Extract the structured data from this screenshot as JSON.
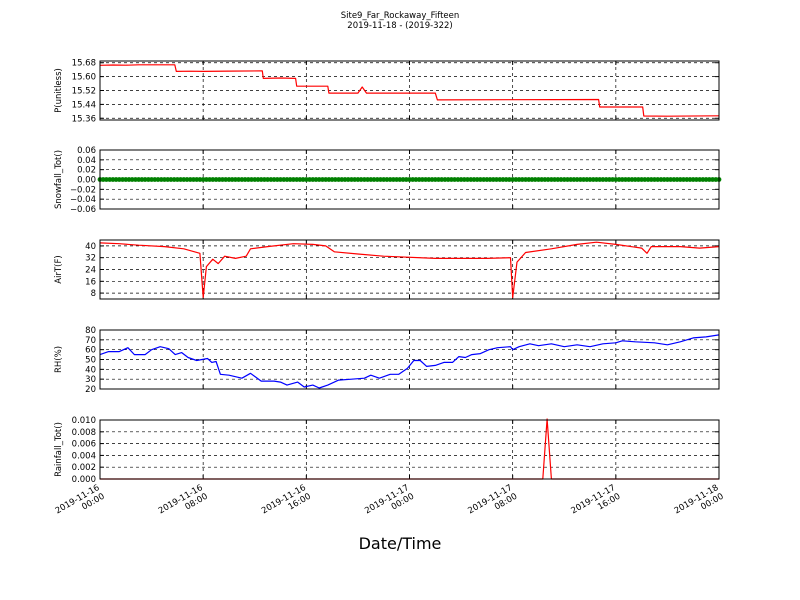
{
  "title": "Site9_Far_Rockaway_Fifteen",
  "subtitle": "2019-11-18 - (2019-322)",
  "xlabel": "Date/Time",
  "chart_data": {
    "type": "line",
    "x_range": [
      "2019-11-16 00:00",
      "2019-11-18 00:00"
    ],
    "x_ticks": [
      {
        "t": "2019-11-16 00:00",
        "label": [
          "2019-11-16",
          "00:00"
        ]
      },
      {
        "t": "2019-11-16 08:00",
        "label": [
          "2019-11-16",
          "08:00"
        ]
      },
      {
        "t": "2019-11-16 16:00",
        "label": [
          "2019-11-16",
          "16:00"
        ]
      },
      {
        "t": "2019-11-17 00:00",
        "label": [
          "2019-11-17",
          "00:00"
        ]
      },
      {
        "t": "2019-11-17 08:00",
        "label": [
          "2019-11-17",
          "08:00"
        ]
      },
      {
        "t": "2019-11-17 16:00",
        "label": [
          "2019-11-17",
          "16:00"
        ]
      },
      {
        "t": "2019-11-18 00:00",
        "label": [
          "2019-11-18",
          "00:00"
        ]
      }
    ],
    "grid": true,
    "panels": [
      {
        "ylabel": "P(unitless)",
        "ylim": [
          15.35,
          15.69
        ],
        "yticks": [
          "15.36",
          "15.44",
          "15.52",
          "15.60",
          "15.68"
        ],
        "color": "#ff0000",
        "series": [
          {
            "x": "2019-11-16 00:00",
            "y": 15.665
          },
          {
            "x": "2019-11-16 01:00",
            "y": 15.667
          },
          {
            "x": "2019-11-16 02:00",
            "y": 15.666
          },
          {
            "x": "2019-11-16 03:00",
            "y": 15.668
          },
          {
            "x": "2019-11-16 05:48",
            "y": 15.668
          },
          {
            "x": "2019-11-16 05:55",
            "y": 15.63
          },
          {
            "x": "2019-11-16 07:00",
            "y": 15.631
          },
          {
            "x": "2019-11-16 08:00",
            "y": 15.63
          },
          {
            "x": "2019-11-16 10:00",
            "y": 15.632
          },
          {
            "x": "2019-11-16 12:35",
            "y": 15.633
          },
          {
            "x": "2019-11-16 12:40",
            "y": 15.59
          },
          {
            "x": "2019-11-16 14:00",
            "y": 15.592
          },
          {
            "x": "2019-11-16 15:10",
            "y": 15.59
          },
          {
            "x": "2019-11-16 15:15",
            "y": 15.545
          },
          {
            "x": "2019-11-16 17:40",
            "y": 15.545
          },
          {
            "x": "2019-11-16 17:45",
            "y": 15.505
          },
          {
            "x": "2019-11-16 20:00",
            "y": 15.505
          },
          {
            "x": "2019-11-16 20:20",
            "y": 15.54
          },
          {
            "x": "2019-11-16 20:40",
            "y": 15.505
          },
          {
            "x": "2019-11-17 02:00",
            "y": 15.505
          },
          {
            "x": "2019-11-17 02:10",
            "y": 15.466
          },
          {
            "x": "2019-11-17 08:00",
            "y": 15.467
          },
          {
            "x": "2019-11-17 14:40",
            "y": 15.468
          },
          {
            "x": "2019-11-17 14:45",
            "y": 15.425
          },
          {
            "x": "2019-11-17 18:05",
            "y": 15.425
          },
          {
            "x": "2019-11-17 18:10",
            "y": 15.373
          },
          {
            "x": "2019-11-17 20:00",
            "y": 15.372
          },
          {
            "x": "2019-11-18 00:00",
            "y": 15.374
          }
        ]
      },
      {
        "ylabel": "Snowfall_Tot()",
        "ylim": [
          -0.06,
          0.06
        ],
        "yticks": [
          "−0.06",
          "−0.04",
          "−0.02",
          "0.00",
          "0.02",
          "0.04",
          "0.06"
        ],
        "color": "#008000",
        "markers": true,
        "constant": 0
      },
      {
        "ylabel": "AirT(F)",
        "ylim": [
          4,
          44
        ],
        "yticks": [
          "8",
          "16",
          "24",
          "32",
          "40"
        ],
        "color": "#ff0000",
        "series": [
          {
            "x": "2019-11-16 00:00",
            "y": 42
          },
          {
            "x": "2019-11-16 01:30",
            "y": 41.5
          },
          {
            "x": "2019-11-16 03:00",
            "y": 40.5
          },
          {
            "x": "2019-11-16 05:00",
            "y": 39.5
          },
          {
            "x": "2019-11-16 06:30",
            "y": 38
          },
          {
            "x": "2019-11-16 07:45",
            "y": 35
          },
          {
            "x": "2019-11-16 08:00",
            "y": 5
          },
          {
            "x": "2019-11-16 08:15",
            "y": 26
          },
          {
            "x": "2019-11-16 08:45",
            "y": 31
          },
          {
            "x": "2019-11-16 09:10",
            "y": 28
          },
          {
            "x": "2019-11-16 09:40",
            "y": 33
          },
          {
            "x": "2019-11-16 10:30",
            "y": 31.5
          },
          {
            "x": "2019-11-16 11:20",
            "y": 33
          },
          {
            "x": "2019-11-16 11:40",
            "y": 38
          },
          {
            "x": "2019-11-16 13:00",
            "y": 39.5
          },
          {
            "x": "2019-11-16 15:00",
            "y": 41.5
          },
          {
            "x": "2019-11-16 16:30",
            "y": 41
          },
          {
            "x": "2019-11-16 17:30",
            "y": 40
          },
          {
            "x": "2019-11-16 18:10",
            "y": 36
          },
          {
            "x": "2019-11-16 20:00",
            "y": 34.5
          },
          {
            "x": "2019-11-16 22:00",
            "y": 33
          },
          {
            "x": "2019-11-17 02:00",
            "y": 31.5
          },
          {
            "x": "2019-11-17 06:00",
            "y": 31.5
          },
          {
            "x": "2019-11-17 07:50",
            "y": 32
          },
          {
            "x": "2019-11-17 08:00",
            "y": 5
          },
          {
            "x": "2019-11-17 08:20",
            "y": 29
          },
          {
            "x": "2019-11-17 09:00",
            "y": 35.5
          },
          {
            "x": "2019-11-17 11:00",
            "y": 38
          },
          {
            "x": "2019-11-17 13:00",
            "y": 41
          },
          {
            "x": "2019-11-17 14:30",
            "y": 42.5
          },
          {
            "x": "2019-11-17 16:00",
            "y": 41
          },
          {
            "x": "2019-11-17 18:00",
            "y": 38.5
          },
          {
            "x": "2019-11-17 18:25",
            "y": 35
          },
          {
            "x": "2019-11-17 18:45",
            "y": 39.5
          },
          {
            "x": "2019-11-17 21:00",
            "y": 39.5
          },
          {
            "x": "2019-11-17 22:30",
            "y": 38.5
          },
          {
            "x": "2019-11-18 00:00",
            "y": 39.5
          }
        ]
      },
      {
        "ylabel": "RH(%)",
        "ylim": [
          20,
          80
        ],
        "yticks": [
          "20",
          "30",
          "40",
          "50",
          "60",
          "70",
          "80"
        ],
        "color": "#0000ff",
        "series": [
          {
            "x": "2019-11-16 00:00",
            "y": 55
          },
          {
            "x": "2019-11-16 00:40",
            "y": 58
          },
          {
            "x": "2019-11-16 01:30",
            "y": 58
          },
          {
            "x": "2019-11-16 02:10",
            "y": 62
          },
          {
            "x": "2019-11-16 02:40",
            "y": 55
          },
          {
            "x": "2019-11-16 03:30",
            "y": 55
          },
          {
            "x": "2019-11-16 04:00",
            "y": 60
          },
          {
            "x": "2019-11-16 04:40",
            "y": 63
          },
          {
            "x": "2019-11-16 05:20",
            "y": 61
          },
          {
            "x": "2019-11-16 05:50",
            "y": 55
          },
          {
            "x": "2019-11-16 06:20",
            "y": 57
          },
          {
            "x": "2019-11-16 06:50",
            "y": 52
          },
          {
            "x": "2019-11-16 07:30",
            "y": 49
          },
          {
            "x": "2019-11-16 08:20",
            "y": 51
          },
          {
            "x": "2019-11-16 08:40",
            "y": 47
          },
          {
            "x": "2019-11-16 09:00",
            "y": 48
          },
          {
            "x": "2019-11-16 09:20",
            "y": 35
          },
          {
            "x": "2019-11-16 10:00",
            "y": 34
          },
          {
            "x": "2019-11-16 11:00",
            "y": 31
          },
          {
            "x": "2019-11-16 11:40",
            "y": 36
          },
          {
            "x": "2019-11-16 12:30",
            "y": 28
          },
          {
            "x": "2019-11-16 13:30",
            "y": 28
          },
          {
            "x": "2019-11-16 14:00",
            "y": 27
          },
          {
            "x": "2019-11-16 14:30",
            "y": 24
          },
          {
            "x": "2019-11-16 15:20",
            "y": 27
          },
          {
            "x": "2019-11-16 15:50",
            "y": 22
          },
          {
            "x": "2019-11-16 16:30",
            "y": 24
          },
          {
            "x": "2019-11-16 17:00",
            "y": 21
          },
          {
            "x": "2019-11-16 17:40",
            "y": 24
          },
          {
            "x": "2019-11-16 18:30",
            "y": 29
          },
          {
            "x": "2019-11-16 19:30",
            "y": 30
          },
          {
            "x": "2019-11-16 20:30",
            "y": 31
          },
          {
            "x": "2019-11-16 21:00",
            "y": 34
          },
          {
            "x": "2019-11-16 21:40",
            "y": 31
          },
          {
            "x": "2019-11-16 22:30",
            "y": 35
          },
          {
            "x": "2019-11-16 23:10",
            "y": 35
          },
          {
            "x": "2019-11-16 23:50",
            "y": 41
          },
          {
            "x": "2019-11-17 00:20",
            "y": 49
          },
          {
            "x": "2019-11-17 00:50",
            "y": 49
          },
          {
            "x": "2019-11-17 01:20",
            "y": 43
          },
          {
            "x": "2019-11-17 02:00",
            "y": 44
          },
          {
            "x": "2019-11-17 02:40",
            "y": 47
          },
          {
            "x": "2019-11-17 03:20",
            "y": 47
          },
          {
            "x": "2019-11-17 03:50",
            "y": 53
          },
          {
            "x": "2019-11-17 04:20",
            "y": 52
          },
          {
            "x": "2019-11-17 04:50",
            "y": 55
          },
          {
            "x": "2019-11-17 05:30",
            "y": 56
          },
          {
            "x": "2019-11-17 06:10",
            "y": 60
          },
          {
            "x": "2019-11-17 06:50",
            "y": 62
          },
          {
            "x": "2019-11-17 07:50",
            "y": 63
          },
          {
            "x": "2019-11-17 08:00",
            "y": 60
          },
          {
            "x": "2019-11-17 08:30",
            "y": 63
          },
          {
            "x": "2019-11-17 09:20",
            "y": 66
          },
          {
            "x": "2019-11-17 10:00",
            "y": 64
          },
          {
            "x": "2019-11-17 11:00",
            "y": 66
          },
          {
            "x": "2019-11-17 12:00",
            "y": 63
          },
          {
            "x": "2019-11-17 13:00",
            "y": 65
          },
          {
            "x": "2019-11-17 14:00",
            "y": 63
          },
          {
            "x": "2019-11-17 15:00",
            "y": 66
          },
          {
            "x": "2019-11-17 16:00",
            "y": 67
          },
          {
            "x": "2019-11-17 16:30",
            "y": 69
          },
          {
            "x": "2019-11-17 17:30",
            "y": 68
          },
          {
            "x": "2019-11-17 19:00",
            "y": 67
          },
          {
            "x": "2019-11-17 20:00",
            "y": 65
          },
          {
            "x": "2019-11-17 21:00",
            "y": 68
          },
          {
            "x": "2019-11-17 22:00",
            "y": 72
          },
          {
            "x": "2019-11-17 23:00",
            "y": 73
          },
          {
            "x": "2019-11-18 00:00",
            "y": 75
          }
        ]
      },
      {
        "ylabel": "Rainfall_Tot()",
        "ylim": [
          0,
          0.01
        ],
        "yticks": [
          "0.000",
          "0.002",
          "0.004",
          "0.006",
          "0.008",
          "0.010"
        ],
        "color": "#ff0000",
        "series": [
          {
            "x": "2019-11-16 00:00",
            "y": 0
          },
          {
            "x": "2019-11-17 10:20",
            "y": 0
          },
          {
            "x": "2019-11-17 10:40",
            "y": 0.0102
          },
          {
            "x": "2019-11-17 11:00",
            "y": 0
          },
          {
            "x": "2019-11-18 00:00",
            "y": 0
          }
        ]
      }
    ]
  }
}
